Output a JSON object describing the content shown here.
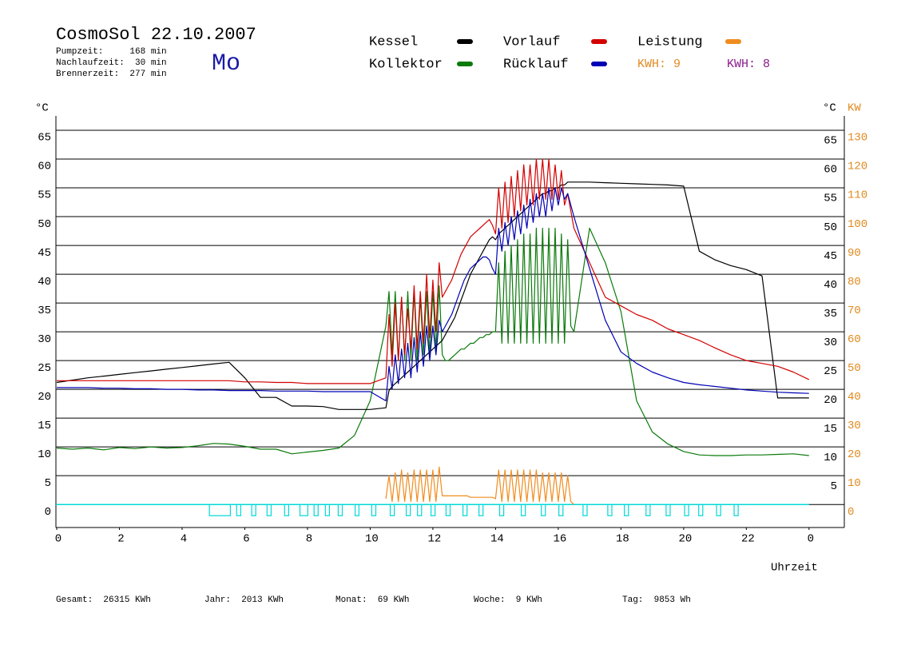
{
  "chart_data": {
    "type": "line",
    "title": "CosmoSol 22.10.2007",
    "info": [
      "Pumpzeit:     168 min",
      "Nachlaufzeit:  30 min",
      "Brennerzeit:  277 min"
    ],
    "weekday": "Mo",
    "weekday_color": "#1a1aa8",
    "ylabel": "°C",
    "y2label": "KW",
    "xlabel": "Uhrzeit",
    "kwh": [
      {
        "text": "KWH: 9",
        "color": "#e08a1e"
      },
      {
        "text": "KWH: 8",
        "color": "#8b1a8b"
      }
    ],
    "footer": [
      "Gesamt:  26315 KWh",
      "Jahr:  2013 KWh",
      "Monat:  69 KWh",
      "Woche:  9 KWh",
      "Tag:  9853 Wh"
    ],
    "grid": true,
    "xlim": [
      0,
      25.1
    ],
    "xticks": [
      0,
      2,
      4,
      6,
      8,
      10,
      12,
      14,
      16,
      18,
      20,
      22,
      {
        "value": 24,
        "label": "0"
      }
    ],
    "ylim": [
      -4,
      67.5
    ],
    "yticks": [
      0,
      5,
      10,
      15,
      20,
      25,
      30,
      35,
      40,
      45,
      50,
      55,
      60,
      65
    ],
    "y2lim": [
      -8,
      135
    ],
    "y2ticks": [
      0,
      10,
      20,
      30,
      40,
      50,
      60,
      70,
      80,
      90,
      100,
      110,
      120,
      130
    ],
    "y2color": "#e08a1e",
    "interval_color": "#00d8d8",
    "intervals": [
      [
        4.87,
        5.54
      ],
      [
        5.74,
        5.87
      ],
      [
        6.22,
        6.35
      ],
      [
        6.71,
        6.84
      ],
      [
        7.27,
        7.4
      ],
      [
        7.76,
        8.01
      ],
      [
        8.21,
        8.34
      ],
      [
        8.57,
        8.7
      ],
      [
        8.98,
        9.11
      ],
      [
        9.52,
        9.64
      ],
      [
        10.05,
        10.18
      ],
      [
        10.64,
        10.77
      ],
      [
        11.15,
        11.28
      ],
      [
        11.51,
        11.64
      ],
      [
        11.94,
        12.07
      ],
      [
        12.42,
        12.55
      ],
      [
        12.96,
        13.09
      ],
      [
        13.47,
        13.6
      ],
      [
        14.13,
        14.26
      ],
      [
        14.82,
        14.95
      ],
      [
        15.46,
        15.59
      ],
      [
        16.02,
        16.15
      ],
      [
        16.79,
        16.92
      ],
      [
        17.58,
        17.71
      ],
      [
        18.11,
        18.24
      ],
      [
        18.8,
        18.93
      ],
      [
        19.44,
        19.57
      ],
      [
        20.03,
        20.16
      ],
      [
        20.48,
        20.61
      ],
      [
        21.05,
        21.18
      ],
      [
        21.61,
        21.74
      ]
    ],
    "x": [
      0,
      0.5,
      1,
      1.5,
      2,
      2.5,
      3,
      3.5,
      4,
      4.5,
      5,
      5.5,
      6,
      6.5,
      7,
      7.5,
      8,
      8.5,
      9,
      9.5,
      10,
      10.5,
      10.6,
      10.7,
      10.8,
      10.9,
      11,
      11.1,
      11.2,
      11.3,
      11.4,
      11.5,
      11.6,
      11.7,
      11.8,
      11.9,
      12,
      12.1,
      12.2,
      12.3,
      12.4,
      12.5,
      12.6,
      12.7,
      12.8,
      12.9,
      13,
      13.1,
      13.2,
      13.3,
      13.4,
      13.5,
      13.6,
      13.7,
      13.8,
      13.9,
      14,
      14.1,
      14.2,
      14.3,
      14.4,
      14.5,
      14.6,
      14.7,
      14.8,
      14.9,
      15,
      15.1,
      15.2,
      15.3,
      15.4,
      15.5,
      15.6,
      15.7,
      15.8,
      15.9,
      16,
      16.1,
      16.2,
      16.3,
      16.4,
      16.5,
      17,
      17.5,
      18,
      18.5,
      19,
      19.5,
      20,
      20.5,
      21,
      21.5,
      22,
      22.5,
      23,
      23.5,
      24
    ],
    "series": [
      {
        "name": "Kessel",
        "color": "#000000",
        "values": [
          21.2,
          21.6,
          22,
          22.3,
          22.6,
          22.9,
          23.2,
          23.5,
          23.8,
          24.1,
          24.4,
          24.7,
          22,
          18.6,
          18.6,
          17.1,
          17.1,
          17,
          16.5,
          16.5,
          16.5,
          16.8,
          19.8,
          20.5,
          21,
          21.5,
          22,
          22.5,
          23,
          23.5,
          24,
          24.5,
          25,
          25.5,
          26,
          26.5,
          27,
          27.5,
          28,
          28.5,
          29.5,
          30.5,
          31.5,
          32.5,
          34,
          35.5,
          37,
          38.5,
          40,
          41,
          42,
          43,
          44,
          45,
          46,
          46.5,
          46,
          47,
          47.5,
          48,
          48.5,
          49,
          49.5,
          50,
          50.5,
          51,
          51.5,
          52,
          52.5,
          53,
          53.5,
          54,
          54,
          54.5,
          54.5,
          55,
          55,
          55.5,
          55.5,
          56,
          56,
          56,
          56,
          55.9,
          55.8,
          55.7,
          55.6,
          55.5,
          55.3,
          44,
          42.5,
          41.5,
          40.8,
          39.7,
          18.5,
          18.5,
          18.5
        ]
      },
      {
        "name": "Vorlauf",
        "color": "#d40000",
        "values": [
          21.5,
          21.5,
          21.5,
          21.5,
          21.5,
          21.5,
          21.5,
          21.5,
          21.5,
          21.5,
          21.5,
          21.5,
          21.3,
          21.3,
          21.2,
          21.2,
          21,
          21,
          21,
          21,
          21,
          22,
          33,
          24,
          35,
          25,
          36,
          26,
          34,
          27,
          38,
          27,
          37,
          28,
          40,
          29,
          39,
          30,
          42,
          36,
          37,
          38,
          39,
          40.5,
          42,
          43.5,
          44.5,
          45.5,
          46.5,
          47,
          47.5,
          48,
          48.5,
          49,
          49.5,
          48.5,
          47,
          55,
          48,
          56,
          49,
          57,
          50,
          58,
          51,
          59,
          52,
          59,
          52,
          60,
          53,
          60,
          53,
          60,
          53,
          59,
          53,
          58,
          52,
          54,
          51,
          48,
          42,
          36,
          34.5,
          33,
          32,
          30.5,
          29.5,
          28.5,
          27.2,
          26,
          25,
          24.5,
          24,
          23,
          21.7
        ]
      },
      {
        "name": "Leistung",
        "color": "#f08c1e",
        "axis": "y2",
        "values": [
          null,
          null,
          null,
          null,
          null,
          null,
          null,
          null,
          null,
          null,
          null,
          null,
          null,
          null,
          null,
          null,
          null,
          null,
          null,
          null,
          null,
          2,
          10,
          1,
          11,
          1,
          12,
          1,
          11,
          1,
          12,
          1,
          12,
          1,
          12,
          1,
          12,
          1,
          13,
          3,
          3,
          3,
          3,
          3,
          3,
          3,
          3,
          3,
          2.5,
          2.5,
          2.5,
          2.5,
          2.5,
          2.5,
          2.5,
          2.5,
          2,
          12,
          1,
          12,
          1,
          12,
          1,
          12,
          1,
          12,
          1,
          12,
          1,
          12,
          1,
          11,
          1,
          11,
          1,
          11,
          1,
          11,
          1,
          10,
          1,
          0,
          null,
          null,
          null,
          null,
          null,
          null,
          null,
          null,
          null,
          null,
          null,
          null,
          null,
          null,
          null
        ]
      },
      {
        "name": "Kollektor",
        "color": "#0a7a0a",
        "values": [
          9.8,
          9.6,
          9.8,
          9.5,
          9.9,
          9.7,
          10,
          9.8,
          9.9,
          10.2,
          10.6,
          10.5,
          10.1,
          9.6,
          9.6,
          8.8,
          9.1,
          9.4,
          9.8,
          12,
          18,
          31,
          37,
          26,
          37,
          25,
          36,
          25,
          37,
          25,
          37,
          25,
          36,
          26,
          37,
          26,
          37,
          27,
          38,
          26,
          25,
          25,
          25.5,
          26,
          26.5,
          27,
          27,
          27.5,
          28,
          28,
          28.5,
          29,
          29,
          29.5,
          29.5,
          30,
          30,
          42,
          28,
          44,
          28,
          45,
          28,
          46,
          28,
          47,
          28,
          47,
          28,
          48,
          28,
          48,
          28,
          48,
          28,
          48,
          28,
          47,
          28,
          46,
          31,
          30,
          48,
          42,
          33.5,
          18,
          12.6,
          10.5,
          9.2,
          8.6,
          8.5,
          8.5,
          8.6,
          8.6,
          8.7,
          8.8,
          8.5
        ]
      },
      {
        "name": "Rücklauf",
        "color": "#0000b4",
        "values": [
          20.3,
          20.3,
          20.3,
          20.2,
          20.2,
          20.1,
          20.1,
          20,
          20,
          19.9,
          19.9,
          19.8,
          19.8,
          19.8,
          19.7,
          19.7,
          19.7,
          19.6,
          19.6,
          19.6,
          19.6,
          18,
          24,
          20,
          26,
          21,
          27,
          22,
          28,
          22,
          29,
          23,
          30,
          24,
          31,
          25,
          31,
          26,
          32,
          30,
          31,
          32,
          33,
          34.5,
          36,
          37.5,
          39,
          40,
          41,
          41.5,
          42,
          42.5,
          43,
          43,
          42.5,
          41,
          40,
          48,
          44,
          49,
          45,
          50,
          46,
          51,
          47,
          52,
          48,
          53,
          49,
          54,
          50,
          54,
          50,
          55,
          51,
          55,
          52,
          55,
          53,
          54,
          52,
          50,
          41,
          32,
          26.5,
          24.5,
          23,
          22,
          21.2,
          20.8,
          20.5,
          20.2,
          19.9,
          19.7,
          19.5,
          19.4,
          19.3
        ]
      }
    ]
  }
}
